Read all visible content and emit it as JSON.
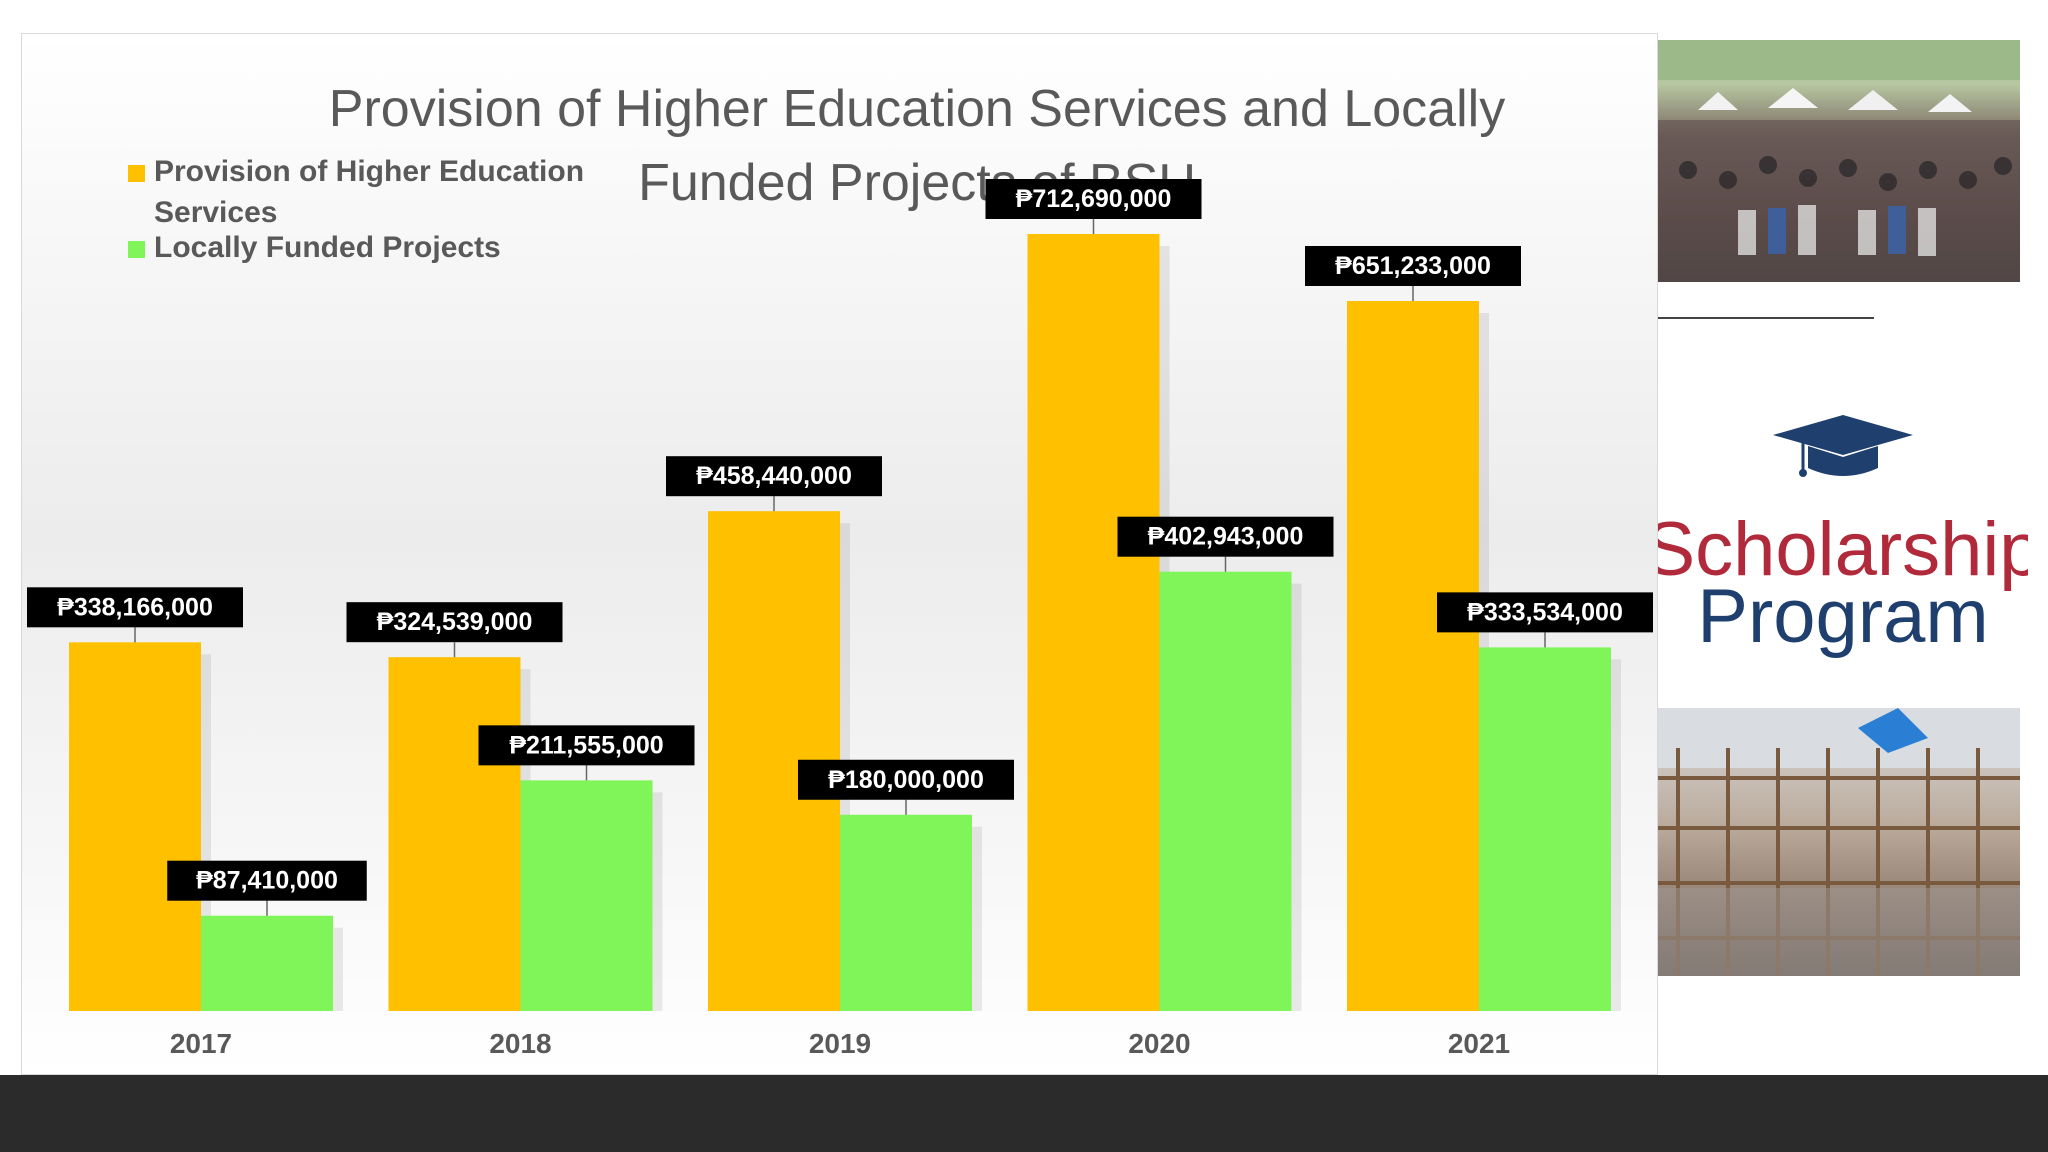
{
  "chart_data": {
    "type": "bar",
    "title": "Provision of Higher Education Services and Locally Funded Projects of BSU",
    "title_lines": [
      "Provision of Higher Education Services and Locally",
      "Funded Projects of BSU"
    ],
    "categories": [
      "2017",
      "2018",
      "2019",
      "2020",
      "2021"
    ],
    "series": [
      {
        "name": "Provision of Higher Education Services",
        "color": "#FFC000",
        "values": [
          338166000,
          324539000,
          458440000,
          712690000,
          651233000
        ],
        "labels": [
          "₱338,166,000",
          "₱324,539,000",
          "₱458,440,000",
          "₱712,690,000",
          "₱651,233,000"
        ]
      },
      {
        "name": "Locally Funded Projects",
        "color": "#80F55A",
        "values": [
          87410000,
          211555000,
          180000000,
          402943000,
          333534000
        ],
        "labels": [
          "₱87,410,000",
          "₱211,555,000",
          "₱180,000,000",
          "₱402,943,000",
          "₱333,534,000"
        ]
      }
    ],
    "legend_lines": [
      [
        "Provision of Higher Education",
        "Services"
      ],
      [
        "Locally Funded Projects"
      ]
    ],
    "legend_position": "top-left",
    "ylim": [
      0,
      720000000
    ],
    "grid": false,
    "xlabel": "",
    "ylabel": ""
  },
  "side_panel": {
    "scholarship_line1": "Scholarship",
    "scholarship_line2": "Program",
    "scholarship_word_color": "#B02A3C",
    "program_word_color": "#1F3F6E",
    "cap_icon": "graduation-cap-icon"
  },
  "colors": {
    "footer": "#2B2B2B",
    "label_box": "#000000"
  }
}
